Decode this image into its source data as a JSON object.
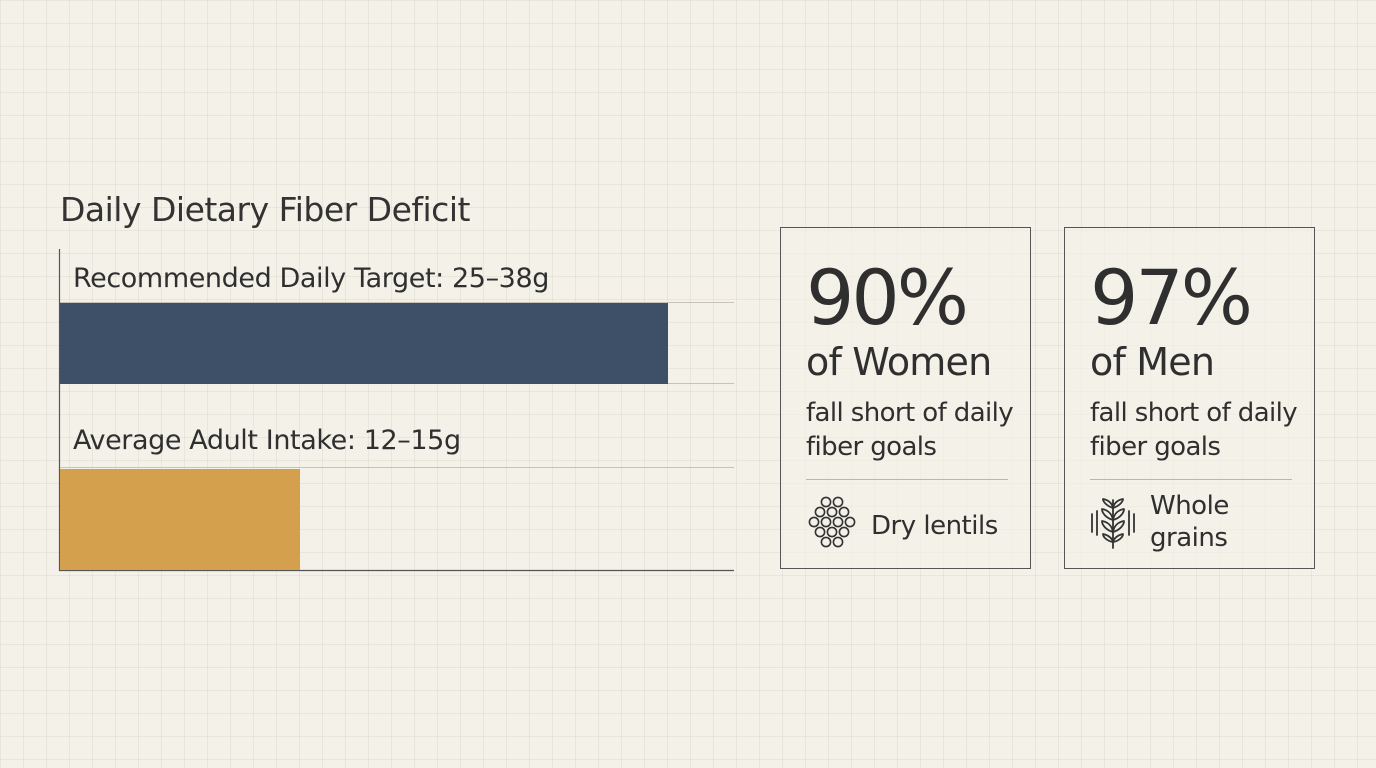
{
  "chart_data": {
    "type": "bar",
    "orientation": "horizontal",
    "title": "Daily Dietary Fiber Deficit",
    "categories": [
      "Recommended Daily Target: 25–38g",
      "Average Adult Intake: 12–15g"
    ],
    "values": [
      38,
      15
    ],
    "colors": [
      "#3e5068",
      "#d4a04e"
    ],
    "xlim": [
      0,
      42
    ],
    "grid": false,
    "legend": "none"
  },
  "cards": [
    {
      "percent": "90%",
      "group": "of Women",
      "description": "fall short of daily fiber goals",
      "food_label": "Dry lentils",
      "icon": "lentils-icon"
    },
    {
      "percent": "97%",
      "group": "of Men",
      "description": "fall short of daily fiber goals",
      "food_label": "Whole grains",
      "icon": "wheat-icon"
    }
  ]
}
